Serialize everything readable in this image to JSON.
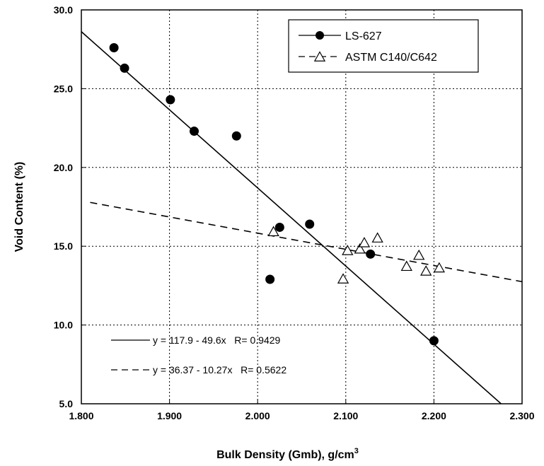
{
  "chart_data": {
    "type": "scatter",
    "xlabel": "Bulk Density (Gmb), g/cm",
    "xlabel_superscript": "3",
    "ylabel": "Void Content (%)",
    "xlim": [
      1.8,
      2.3
    ],
    "ylim": [
      5.0,
      30.0
    ],
    "x_ticks": [
      "1.800",
      "1.900",
      "2.000",
      "2.100",
      "2.200",
      "2.300"
    ],
    "y_ticks": [
      "5.0",
      "10.0",
      "15.0",
      "20.0",
      "25.0",
      "30.0"
    ],
    "grid": true,
    "legend_position": "top-right",
    "series": [
      {
        "name": "LS-627",
        "marker": "filled-circle",
        "line_style": "solid",
        "x": [
          1.837,
          1.849,
          1.901,
          1.928,
          1.976,
          2.014,
          2.025,
          2.059,
          2.128,
          2.2
        ],
        "y": [
          27.6,
          26.3,
          24.3,
          22.3,
          22.0,
          12.9,
          16.2,
          16.4,
          14.5,
          9.0
        ],
        "fit": {
          "intercept": 117.9,
          "slope": -49.6,
          "label": "y = 117.9 - 49.6x   R= 0.9429"
        }
      },
      {
        "name": "ASTM C140/C642",
        "marker": "open-triangle",
        "line_style": "dashed",
        "x": [
          2.018,
          2.097,
          2.102,
          2.116,
          2.121,
          2.136,
          2.169,
          2.183,
          2.191,
          2.206
        ],
        "y": [
          15.9,
          12.9,
          14.7,
          14.8,
          15.2,
          15.5,
          13.7,
          14.4,
          13.4,
          13.6
        ],
        "fit": {
          "intercept": 36.37,
          "slope": -10.27,
          "label": "y = 36.37 - 10.27x   R= 0.5622"
        }
      }
    ]
  }
}
